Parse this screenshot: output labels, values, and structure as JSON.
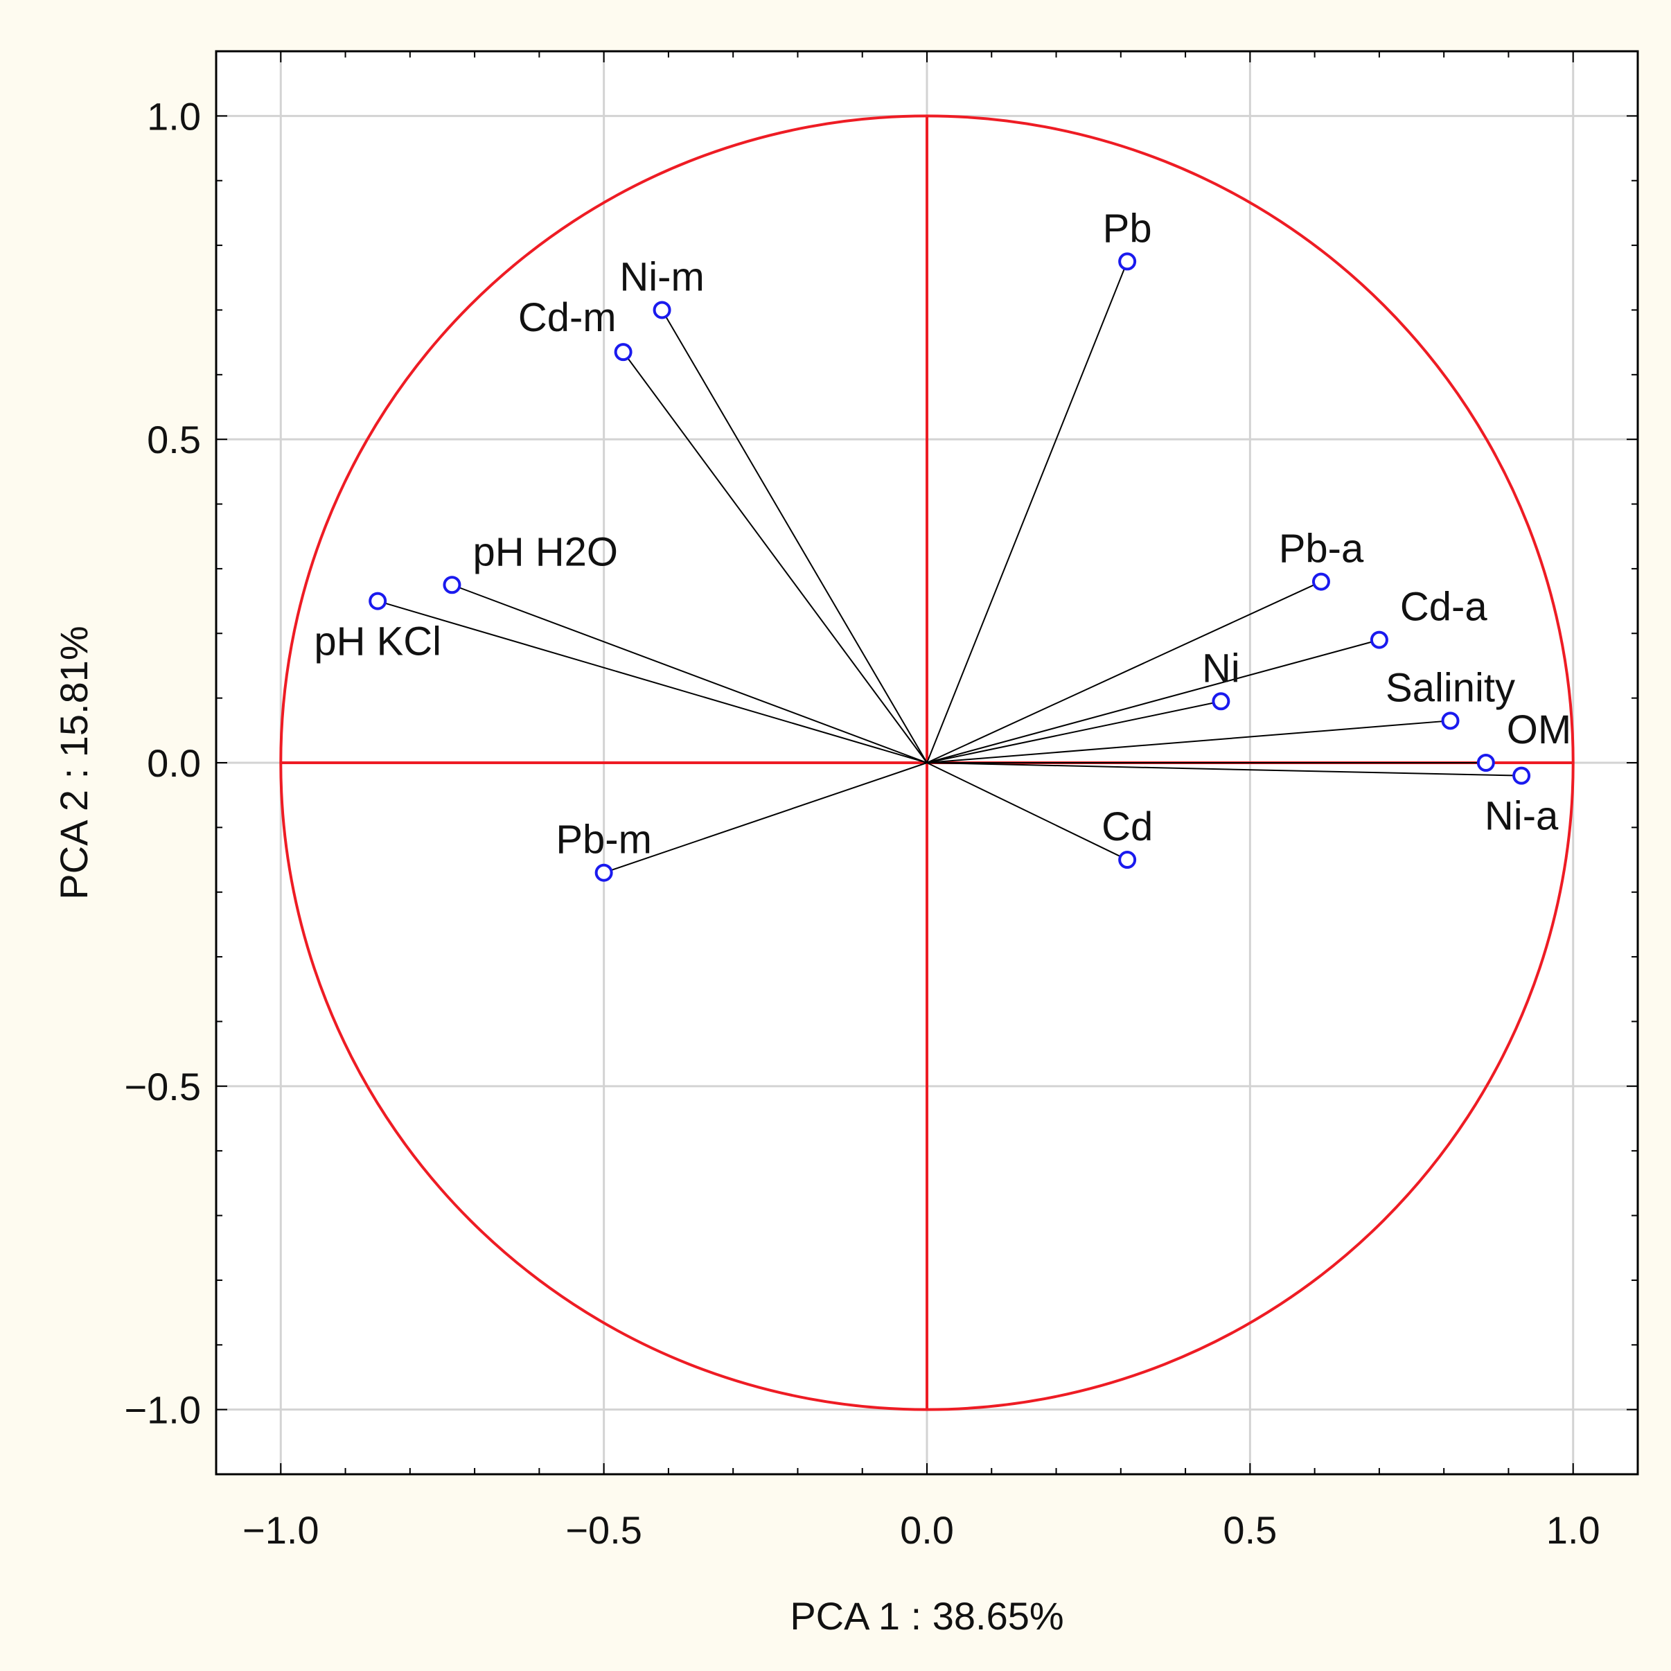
{
  "colors": {
    "background": "#fefbf0",
    "plot_background": "#ffffff",
    "gridline": "#d3d3d3",
    "circle_and_axes": "#ee1c24",
    "vectors": "#000000",
    "markers": "#1a1aee"
  },
  "chart_data": {
    "type": "scatter",
    "subtype": "pca-correlation-circle",
    "title": "",
    "xlabel": "PCA 1 : 38.65%",
    "ylabel": "PCA 2 : 15.81%",
    "xlim": [
      -1.1,
      1.1
    ],
    "ylim": [
      -1.1,
      1.1
    ],
    "grid": true,
    "xticks": [
      -1.0,
      -0.5,
      0.0,
      0.5,
      1.0
    ],
    "xtick_labels": [
      "−1.0",
      "−0.5",
      "0.0",
      "0.5",
      "1.0"
    ],
    "yticks": [
      1.0,
      0.5,
      0.0,
      -0.5,
      -1.0
    ],
    "ytick_labels": [
      "1.0",
      "0.5",
      "0.0",
      "−0.5",
      "−1.0"
    ],
    "unit_circle_radius": 1.0,
    "points": [
      {
        "label": "Pb",
        "x": 0.31,
        "y": 0.775,
        "label_pos": "above"
      },
      {
        "label": "Ni-m",
        "x": -0.41,
        "y": 0.7,
        "label_pos": "above"
      },
      {
        "label": "Cd-m",
        "x": -0.47,
        "y": 0.635,
        "label_pos": "above-left"
      },
      {
        "label": "pH H2O",
        "x": -0.735,
        "y": 0.275,
        "label_pos": "above-right"
      },
      {
        "label": "pH KCl",
        "x": -0.85,
        "y": 0.25,
        "label_pos": "below"
      },
      {
        "label": "Pb-a",
        "x": 0.61,
        "y": 0.28,
        "label_pos": "above"
      },
      {
        "label": "Cd-a",
        "x": 0.7,
        "y": 0.19,
        "label_pos": "above-right"
      },
      {
        "label": "Ni",
        "x": 0.455,
        "y": 0.095,
        "label_pos": "above"
      },
      {
        "label": "Salinity",
        "x": 0.81,
        "y": 0.065,
        "label_pos": "above"
      },
      {
        "label": "OM",
        "x": 0.865,
        "y": 0.0,
        "label_pos": "above-right"
      },
      {
        "label": "Ni-a",
        "x": 0.92,
        "y": -0.02,
        "label_pos": "below"
      },
      {
        "label": "Cd",
        "x": 0.31,
        "y": -0.15,
        "label_pos": "above"
      },
      {
        "label": "Pb-m",
        "x": -0.5,
        "y": -0.17,
        "label_pos": "above"
      }
    ]
  }
}
